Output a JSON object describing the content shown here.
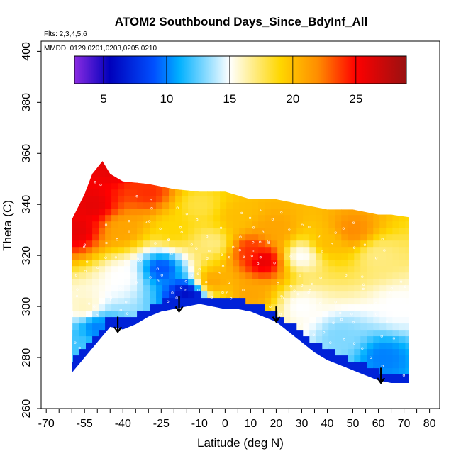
{
  "chart_data": {
    "type": "heatmap",
    "title": "ATOM2 Southbound Days_Since_BdyInf_All",
    "subtitle_flights": "Flts: 2,3,4,5,6",
    "subtitle_dates": "MMDD: 0129,0201,0203,0205,0210",
    "xlabel": "Latitude (deg N)",
    "ylabel": "Theta (C)",
    "xlim": [
      -72,
      84
    ],
    "ylim": [
      260,
      404
    ],
    "x_ticks": [
      -70,
      -65,
      -60,
      -55,
      -50,
      -45,
      -40,
      -35,
      -30,
      -25,
      -20,
      -15,
      -10,
      -5,
      0,
      5,
      10,
      15,
      20,
      25,
      30,
      35,
      40,
      45,
      50,
      55,
      60,
      65,
      70,
      75,
      80
    ],
    "x_tick_labels": [
      "-70",
      "",
      "",
      "-55",
      "",
      "",
      "-40",
      "",
      "",
      "-25",
      "",
      "",
      "-10",
      "",
      "0",
      "",
      "10",
      "",
      "20",
      "",
      "30",
      "",
      "40",
      "",
      "50",
      "",
      "60",
      "",
      "70",
      "",
      "80"
    ],
    "y_ticks": [
      260,
      280,
      300,
      320,
      340,
      360,
      380,
      400
    ],
    "y_tick_labels": [
      "260",
      "280",
      "300",
      "320",
      "340",
      "360",
      "380",
      "400"
    ],
    "grid": false,
    "colorbar": {
      "placement": "top-inside",
      "range": [
        2.7,
        29
      ],
      "ticks": [
        5,
        10,
        15,
        20,
        25
      ],
      "tick_labels": [
        "5",
        "10",
        "15",
        "20",
        "25"
      ],
      "stops": [
        {
          "v": 2.7,
          "color": "#8a2be2"
        },
        {
          "v": 5.5,
          "color": "#0000bb"
        },
        {
          "v": 9,
          "color": "#0050ff"
        },
        {
          "v": 11,
          "color": "#00b0ff"
        },
        {
          "v": 15,
          "color": "#ffffff"
        },
        {
          "v": 19,
          "color": "#ffd700"
        },
        {
          "v": 22,
          "color": "#ff8c00"
        },
        {
          "v": 25,
          "color": "#ff0000"
        },
        {
          "v": 29,
          "color": "#991111"
        }
      ]
    },
    "field": {
      "top_boundary": [
        [
          -60,
          334
        ],
        [
          -55,
          344
        ],
        [
          -52,
          352
        ],
        [
          -48,
          357
        ],
        [
          -45,
          352
        ],
        [
          -40,
          349
        ],
        [
          -30,
          348
        ],
        [
          -20,
          346
        ],
        [
          -10,
          345
        ],
        [
          0,
          345
        ],
        [
          10,
          342
        ],
        [
          20,
          342
        ],
        [
          30,
          340
        ],
        [
          40,
          338
        ],
        [
          50,
          338
        ],
        [
          60,
          336
        ],
        [
          65,
          336
        ],
        [
          72,
          335
        ]
      ],
      "bottom_boundary": [
        [
          -60,
          274
        ],
        [
          -55,
          280
        ],
        [
          -50,
          286
        ],
        [
          -45,
          292
        ],
        [
          -40,
          291
        ],
        [
          -35,
          293
        ],
        [
          -30,
          296
        ],
        [
          -25,
          298
        ],
        [
          -20,
          299
        ],
        [
          -15,
          300
        ],
        [
          -10,
          301
        ],
        [
          -5,
          300
        ],
        [
          0,
          299
        ],
        [
          5,
          299
        ],
        [
          10,
          298
        ],
        [
          15,
          296
        ],
        [
          20,
          294
        ],
        [
          25,
          290
        ],
        [
          30,
          286
        ],
        [
          35,
          282
        ],
        [
          40,
          279
        ],
        [
          45,
          277
        ],
        [
          50,
          275
        ],
        [
          55,
          273
        ],
        [
          60,
          271
        ],
        [
          65,
          270
        ],
        [
          72,
          270
        ]
      ],
      "value_anchors": [
        {
          "lat": -58,
          "theta": 330,
          "value": 26
        },
        {
          "lat": -52,
          "theta": 340,
          "value": 26
        },
        {
          "lat": -45,
          "theta": 355,
          "value": 26
        },
        {
          "lat": -40,
          "theta": 330,
          "value": 21
        },
        {
          "lat": -30,
          "theta": 345,
          "value": 24
        },
        {
          "lat": -20,
          "theta": 330,
          "value": 19
        },
        {
          "lat": -10,
          "theta": 340,
          "value": 18
        },
        {
          "lat": -5,
          "theta": 325,
          "value": 17
        },
        {
          "lat": 5,
          "theta": 335,
          "value": 20
        },
        {
          "lat": 10,
          "theta": 322,
          "value": 24
        },
        {
          "lat": 15,
          "theta": 318,
          "value": 26
        },
        {
          "lat": 20,
          "theta": 330,
          "value": 21
        },
        {
          "lat": 30,
          "theta": 320,
          "value": 15
        },
        {
          "lat": 40,
          "theta": 325,
          "value": 20
        },
        {
          "lat": 50,
          "theta": 330,
          "value": 22
        },
        {
          "lat": 60,
          "theta": 320,
          "value": 17
        },
        {
          "lat": 68,
          "theta": 300,
          "value": 15
        },
        {
          "lat": 62,
          "theta": 280,
          "value": 10
        },
        {
          "lat": 45,
          "theta": 288,
          "value": 13
        },
        {
          "lat": 30,
          "theta": 300,
          "value": 15
        },
        {
          "lat": 10,
          "theta": 305,
          "value": 21
        },
        {
          "lat": -5,
          "theta": 310,
          "value": 21
        },
        {
          "lat": -15,
          "theta": 305,
          "value": 6
        },
        {
          "lat": -25,
          "theta": 315,
          "value": 9
        },
        {
          "lat": -40,
          "theta": 312,
          "value": 15
        },
        {
          "lat": -55,
          "theta": 300,
          "value": 16
        },
        {
          "lat": -58,
          "theta": 285,
          "value": 12
        },
        {
          "lat": -50,
          "theta": 292,
          "value": 10
        }
      ],
      "lower_edge_band_value": 7,
      "lower_edge_band_thickness": 4
    },
    "arrows": [
      {
        "lat": -42,
        "theta": 296,
        "length": 6
      },
      {
        "lat": -18,
        "theta": 304,
        "length": 6
      },
      {
        "lat": 20,
        "theta": 300,
        "length": 6
      },
      {
        "lat": 61,
        "theta": 276,
        "length": 6
      }
    ]
  }
}
